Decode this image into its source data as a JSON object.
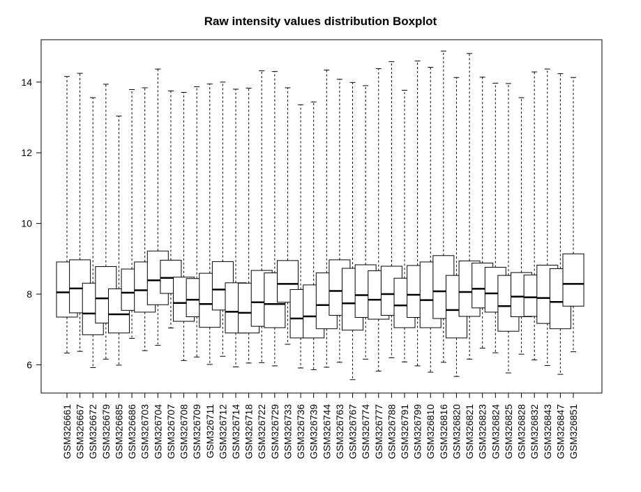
{
  "chart_data": {
    "type": "boxplot",
    "title": "Raw intensity values distribution Boxplot",
    "xlabel": "",
    "ylabel": "",
    "ylim": [
      5.2,
      15.2
    ],
    "yticks": [
      6,
      8,
      10,
      12,
      14
    ],
    "grid": false,
    "legend": "none",
    "colors": {
      "box_fill": "#ffffff",
      "stroke": "#000000",
      "background": "#ffffff"
    },
    "categories": [
      "GSM326661",
      "GSM326667",
      "GSM326672",
      "GSM326679",
      "GSM326685",
      "GSM326686",
      "GSM326703",
      "GSM326704",
      "GSM326707",
      "GSM326708",
      "GSM326709",
      "GSM326711",
      "GSM326712",
      "GSM326714",
      "GSM326718",
      "GSM326722",
      "GSM326729",
      "GSM326733",
      "GSM326736",
      "GSM326739",
      "GSM326744",
      "GSM326763",
      "GSM326767",
      "GSM326774",
      "GSM326777",
      "GSM326788",
      "GSM326791",
      "GSM326799",
      "GSM326810",
      "GSM326816",
      "GSM326820",
      "GSM326821",
      "GSM326823",
      "GSM326824",
      "GSM326825",
      "GSM326828",
      "GSM326832",
      "GSM326843",
      "GSM326847",
      "GSM326851"
    ],
    "boxes": [
      {
        "min": 6.33,
        "q1": 7.35,
        "median": 8.05,
        "q3": 8.91,
        "max": 14.16
      },
      {
        "min": 6.38,
        "q1": 7.47,
        "median": 8.16,
        "q3": 8.97,
        "max": 14.25
      },
      {
        "min": 5.92,
        "q1": 6.85,
        "median": 7.45,
        "q3": 8.31,
        "max": 13.56
      },
      {
        "min": 6.16,
        "q1": 7.18,
        "median": 7.88,
        "q3": 8.78,
        "max": 13.94
      },
      {
        "min": 5.99,
        "q1": 6.9,
        "median": 7.43,
        "q3": 8.15,
        "max": 13.04
      },
      {
        "min": 6.75,
        "q1": 7.54,
        "median": 8.04,
        "q3": 8.71,
        "max": 13.79
      },
      {
        "min": 6.4,
        "q1": 7.49,
        "median": 8.11,
        "q3": 8.91,
        "max": 13.84
      },
      {
        "min": 6.55,
        "q1": 7.7,
        "median": 8.39,
        "q3": 9.22,
        "max": 14.37
      },
      {
        "min": 7.04,
        "q1": 8.02,
        "median": 8.46,
        "q3": 8.96,
        "max": 13.75
      },
      {
        "min": 6.12,
        "q1": 7.23,
        "median": 7.75,
        "q3": 8.48,
        "max": 13.71
      },
      {
        "min": 6.22,
        "q1": 7.36,
        "median": 7.84,
        "q3": 8.44,
        "max": 13.87
      },
      {
        "min": 6.01,
        "q1": 7.06,
        "median": 7.72,
        "q3": 8.59,
        "max": 13.95
      },
      {
        "min": 6.24,
        "q1": 7.55,
        "median": 8.13,
        "q3": 8.92,
        "max": 14.0
      },
      {
        "min": 5.94,
        "q1": 6.9,
        "median": 7.5,
        "q3": 8.32,
        "max": 13.8
      },
      {
        "min": 6.05,
        "q1": 6.9,
        "median": 7.47,
        "q3": 8.31,
        "max": 13.83
      },
      {
        "min": 6.06,
        "q1": 7.09,
        "median": 7.77,
        "q3": 8.67,
        "max": 14.32
      },
      {
        "min": 5.97,
        "q1": 7.05,
        "median": 7.72,
        "q3": 8.6,
        "max": 14.3
      },
      {
        "min": 6.58,
        "q1": 7.77,
        "median": 8.29,
        "q3": 8.95,
        "max": 13.84
      },
      {
        "min": 5.91,
        "q1": 6.76,
        "median": 7.31,
        "q3": 8.13,
        "max": 13.36
      },
      {
        "min": 5.86,
        "q1": 6.76,
        "median": 7.37,
        "q3": 8.26,
        "max": 13.44
      },
      {
        "min": 5.93,
        "q1": 7.02,
        "median": 7.69,
        "q3": 8.6,
        "max": 14.34
      },
      {
        "min": 6.07,
        "q1": 7.4,
        "median": 8.09,
        "q3": 8.97,
        "max": 14.08
      },
      {
        "min": 5.58,
        "q1": 6.98,
        "median": 7.74,
        "q3": 8.73,
        "max": 13.99
      },
      {
        "min": 6.16,
        "q1": 7.34,
        "median": 7.97,
        "q3": 8.83,
        "max": 13.9
      },
      {
        "min": 5.82,
        "q1": 7.29,
        "median": 7.84,
        "q3": 8.66,
        "max": 14.38
      },
      {
        "min": 6.2,
        "q1": 7.4,
        "median": 8.0,
        "q3": 8.79,
        "max": 14.58
      },
      {
        "min": 6.08,
        "q1": 7.05,
        "median": 7.68,
        "q3": 8.45,
        "max": 13.77
      },
      {
        "min": 5.97,
        "q1": 7.34,
        "median": 7.98,
        "q3": 8.81,
        "max": 14.6
      },
      {
        "min": 5.79,
        "q1": 7.05,
        "median": 7.83,
        "q3": 8.91,
        "max": 14.42
      },
      {
        "min": 6.07,
        "q1": 7.31,
        "median": 8.08,
        "q3": 9.09,
        "max": 14.88
      },
      {
        "min": 5.67,
        "q1": 6.76,
        "median": 7.55,
        "q3": 8.53,
        "max": 14.13
      },
      {
        "min": 6.16,
        "q1": 7.37,
        "median": 8.06,
        "q3": 8.94,
        "max": 14.81
      },
      {
        "min": 6.47,
        "q1": 7.61,
        "median": 8.15,
        "q3": 8.88,
        "max": 14.14
      },
      {
        "min": 6.34,
        "q1": 7.49,
        "median": 8.02,
        "q3": 8.76,
        "max": 13.97
      },
      {
        "min": 5.77,
        "q1": 6.95,
        "median": 7.66,
        "q3": 8.53,
        "max": 13.96
      },
      {
        "min": 6.3,
        "q1": 7.36,
        "median": 7.93,
        "q3": 8.61,
        "max": 13.56
      },
      {
        "min": 6.14,
        "q1": 7.37,
        "median": 7.91,
        "q3": 8.54,
        "max": 14.29
      },
      {
        "min": 5.98,
        "q1": 7.17,
        "median": 7.89,
        "q3": 8.82,
        "max": 14.37
      },
      {
        "min": 5.73,
        "q1": 7.02,
        "median": 7.78,
        "q3": 8.72,
        "max": 14.24
      },
      {
        "min": 6.37,
        "q1": 7.66,
        "median": 8.29,
        "q3": 9.14,
        "max": 14.13
      }
    ]
  }
}
